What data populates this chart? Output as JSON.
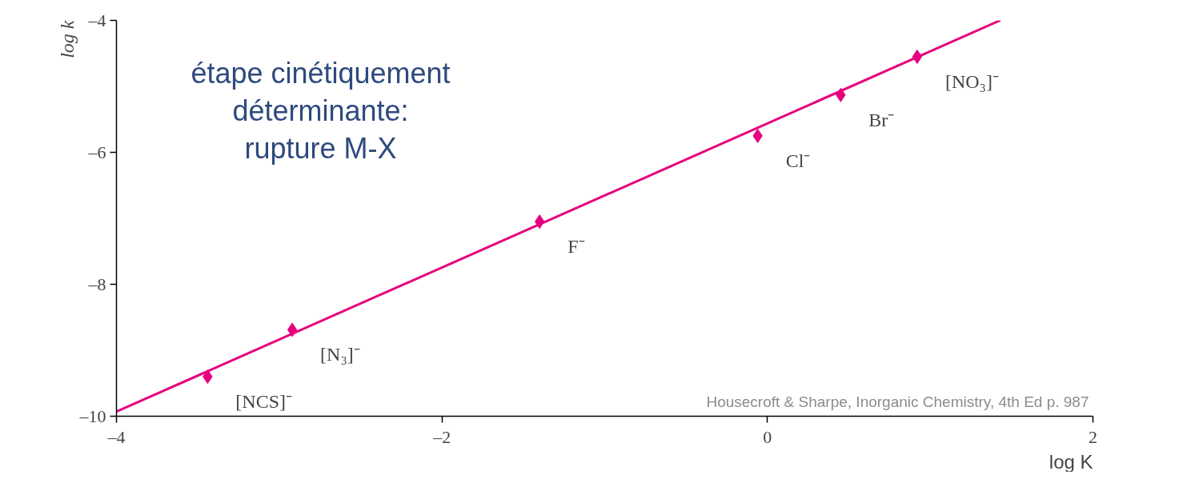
{
  "chart_data": {
    "type": "scatter",
    "xlabel": "log K",
    "ylabel": "log k",
    "xlim": [
      -4,
      2
    ],
    "ylim": [
      -10,
      -4
    ],
    "xticks": [
      {
        "value": -4,
        "label": "–4"
      },
      {
        "value": -2,
        "label": "–2"
      },
      0,
      2
    ],
    "yticks": [
      {
        "value": -10,
        "label": "–10"
      },
      {
        "value": -8,
        "label": "–8"
      },
      {
        "value": -6,
        "label": "–6"
      },
      {
        "value": -4,
        "label": "–4"
      }
    ],
    "grid": false,
    "series": [
      {
        "type": "line",
        "color": "#e6007e",
        "x": [
          -4,
          1.43
        ],
        "values": [
          -9.93,
          -4.0
        ],
        "line_style": "solid"
      },
      {
        "color": "#e6007e",
        "marker": "diamond",
        "x": [
          -3.44,
          -2.92,
          -1.4,
          -0.06,
          0.45,
          0.92
        ],
        "values": [
          -9.4,
          -8.69,
          -7.05,
          -5.75,
          -5.13,
          -4.55
        ]
      }
    ],
    "annotations": [
      "étape cinétiquement\ndéterminante:\nrupture M-X",
      "Housecroft & Sharpe, Inorganic Chemistry, 4th Ed p. 987",
      {
        "text": "[NCS]⁻",
        "x": -3.44,
        "y": -9.4
      },
      {
        "text": "[N₃]⁻",
        "x": -2.92,
        "y": -8.69
      },
      {
        "text": "F⁻",
        "x": -1.4,
        "y": -7.05
      },
      {
        "text": "Cl⁻",
        "x": -0.06,
        "y": -5.75
      },
      {
        "text": "Br⁻",
        "x": 0.45,
        "y": -5.13
      },
      {
        "text": "[NO₃]⁻",
        "x": 0.92,
        "y": -4.55
      }
    ]
  }
}
